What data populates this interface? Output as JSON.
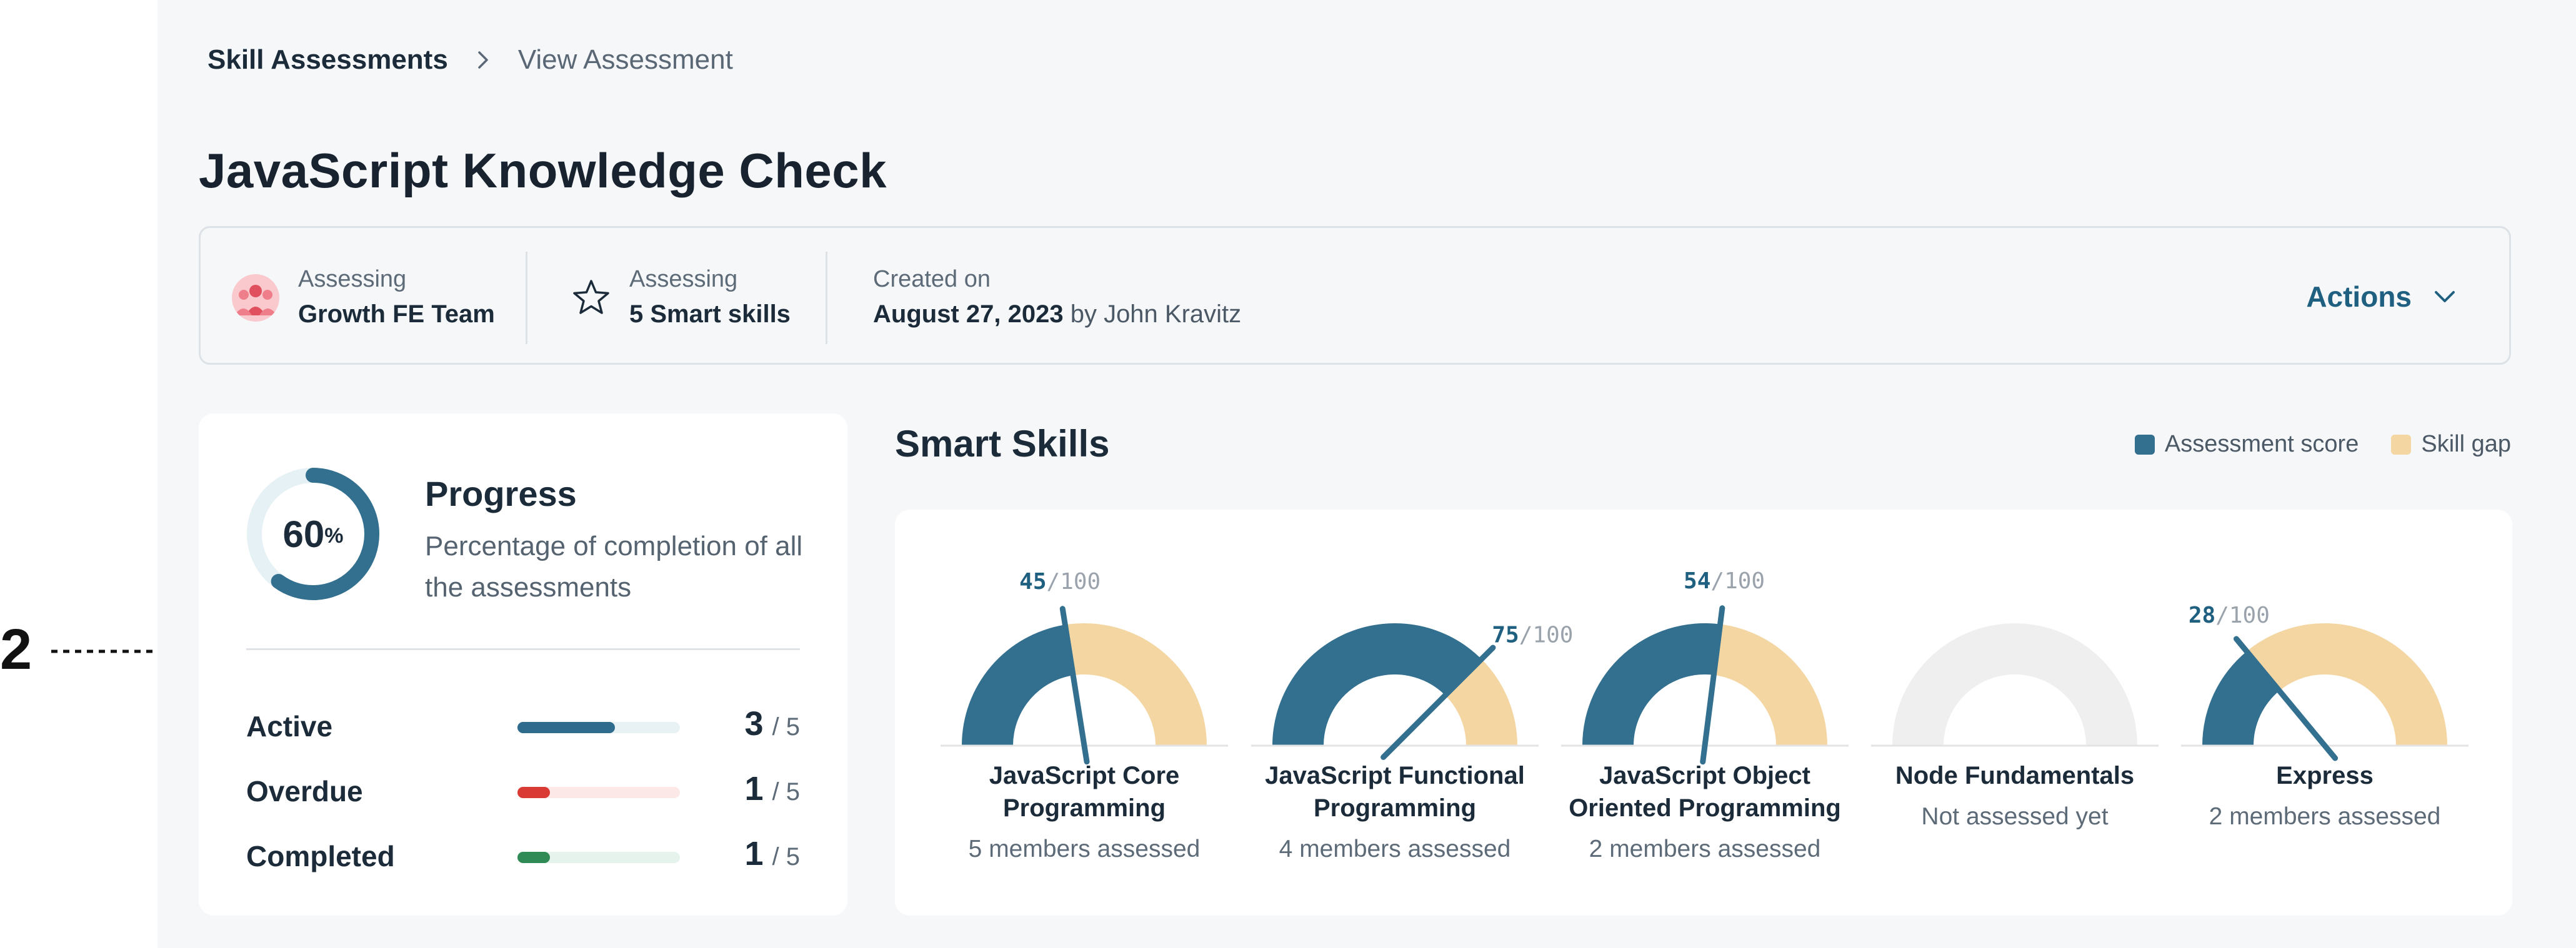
{
  "annotation": {
    "number": "2"
  },
  "breadcrumb": {
    "root": "Skill Assessments",
    "current": "View Assessment"
  },
  "page": {
    "title": "JavaScript Knowledge Check"
  },
  "info": {
    "team": {
      "label": "Assessing",
      "value": "Growth FE Team",
      "icon": "team-avatar-icon"
    },
    "skills": {
      "label": "Assessing",
      "value": "5 Smart skills",
      "icon": "star-icon"
    },
    "created": {
      "label": "Created on",
      "date": "August 27, 2023",
      "by": "by John Kravitz"
    },
    "actions_label": "Actions"
  },
  "progress": {
    "percent": 60,
    "percent_value": "60",
    "percent_sign": "%",
    "title": "Progress",
    "description": "Percentage of completion of all the assessments",
    "stats": [
      {
        "label": "Active",
        "count": "3",
        "total": "/ 5",
        "fraction": 0.6,
        "color": "#2f6b8c",
        "track": "#e8f2f5"
      },
      {
        "label": "Overdue",
        "count": "1",
        "total": "/ 5",
        "fraction": 0.2,
        "color": "#d93b34",
        "track": "#fbe8e7"
      },
      {
        "label": "Completed",
        "count": "1",
        "total": "/ 5",
        "fraction": 0.2,
        "color": "#2f8a55",
        "track": "#e6f3ec"
      }
    ]
  },
  "smart_skills": {
    "title": "Smart Skills",
    "legend": [
      {
        "label": "Assessment score",
        "color": "#33708f"
      },
      {
        "label": "Skill gap",
        "color": "#f4d6a2"
      }
    ]
  },
  "chart_data": {
    "type": "gauge",
    "max": 100,
    "score_color": "#33708f",
    "gap_color": "#f4d6a2",
    "empty_color": "#efefef",
    "items": [
      {
        "name": "JavaScript Core Programming",
        "score": 45,
        "score_label": "45",
        "max_label": "/100",
        "subtitle": "5 members assessed"
      },
      {
        "name": "JavaScript Functional Programming",
        "score": 75,
        "score_label": "75",
        "max_label": "/100",
        "subtitle": "4 members assessed"
      },
      {
        "name": "JavaScript Object Oriented Programming",
        "score": 54,
        "score_label": "54",
        "max_label": "/100",
        "subtitle": "2 members assessed"
      },
      {
        "name": "Node Fundamentals",
        "score": null,
        "score_label": "",
        "max_label": "",
        "subtitle": "Not assessed yet"
      },
      {
        "name": "Express",
        "score": 28,
        "score_label": "28",
        "max_label": "/100",
        "subtitle": "2 members assessed"
      }
    ]
  }
}
